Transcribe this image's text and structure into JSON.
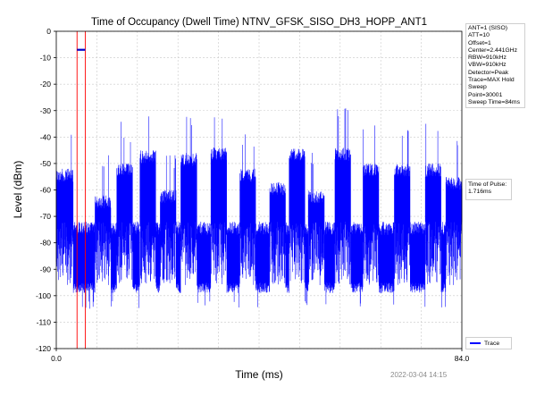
{
  "chart_data": {
    "type": "line",
    "title": "Time of Occupancy (Dwell Time) NTNV_GFSK_SISO_DH3_HOPP_ANT1",
    "xlabel": "Time (ms)",
    "ylabel": "Level (dBm)",
    "xlim": [
      0.0,
      84.0
    ],
    "ylim": [
      -120,
      0
    ],
    "x_tick_labels": [
      "0.0",
      "84.0"
    ],
    "y_ticks": [
      0,
      -10,
      -20,
      -30,
      -40,
      -50,
      -60,
      -70,
      -80,
      -90,
      -100,
      -110,
      -120
    ],
    "grid": true,
    "series": [
      {
        "name": "Trace",
        "color": "#0000ff",
        "noise_floor_range": [
          -95,
          -72
        ],
        "noise_dips_to": -105,
        "bursts": [
          {
            "start": 0.0,
            "end": 3.5,
            "level": -52
          },
          {
            "start": 8.0,
            "end": 11.3,
            "level": -62
          },
          {
            "start": 12.5,
            "end": 15.8,
            "level": -50
          },
          {
            "start": 17.3,
            "end": 20.6,
            "level": -45
          },
          {
            "start": 21.5,
            "end": 24.8,
            "level": -60
          },
          {
            "start": 25.8,
            "end": 29.1,
            "level": -46
          },
          {
            "start": 32.0,
            "end": 35.3,
            "level": -44
          },
          {
            "start": 38.0,
            "end": 41.3,
            "level": -52
          },
          {
            "start": 44.2,
            "end": 47.5,
            "level": -57
          },
          {
            "start": 48.2,
            "end": 51.5,
            "level": -44
          },
          {
            "start": 52.2,
            "end": 55.5,
            "level": -60
          },
          {
            "start": 57.7,
            "end": 61.0,
            "level": -44
          },
          {
            "start": 63.5,
            "end": 66.8,
            "level": -50
          },
          {
            "start": 70.0,
            "end": 73.3,
            "level": -50
          },
          {
            "start": 76.4,
            "end": 79.7,
            "level": -50
          },
          {
            "start": 80.7,
            "end": 84.0,
            "level": -55
          }
        ]
      }
    ],
    "markers": {
      "line1_x": 4.3,
      "line2_x": 6.0,
      "color": "#ff0000",
      "pulse_bar_level": -7,
      "pulse_bar_color": "#0000cc"
    },
    "legend_position": "bottom-right"
  },
  "info": {
    "lines": [
      "ANT=1 (SISO)",
      "ATT=10",
      "Offset=1",
      "Center=2.441GHz",
      "RBW=910kHz",
      "VBW=910kHz",
      "Detector=Peak",
      "Trace=MAX Hold",
      "Sweep Point=30001",
      "Sweep Time=84ms"
    ]
  },
  "pulse": {
    "label": "Time of Pulse:",
    "value": "1.716ms"
  },
  "legend": {
    "label": "Trace"
  },
  "timestamp": "2022-03-04 14:15"
}
